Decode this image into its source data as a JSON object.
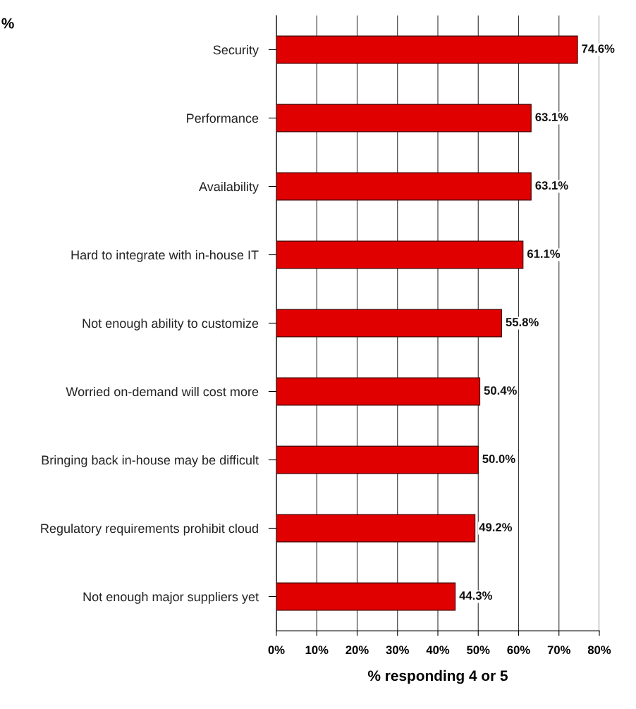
{
  "chart_data": {
    "type": "bar",
    "orientation": "horizontal",
    "xlabel": "% responding 4 or 5",
    "categories": [
      "Security",
      "Performance",
      "Availability",
      "Hard to integrate with in-house IT",
      "Not enough ability to customize",
      "Worried on-demand will cost more",
      "Bringing back in-house may be difficult",
      "Regulatory requirements prohibit cloud",
      "Not enough major suppliers yet"
    ],
    "values": [
      74.6,
      63.1,
      63.1,
      61.1,
      55.8,
      50.4,
      50.0,
      49.2,
      44.3
    ],
    "value_labels": [
      "74.6%",
      "63.1%",
      "63.1%",
      "61.1%",
      "55.8%",
      "50.4%",
      "50.0%",
      "49.2%",
      "44.3%"
    ],
    "color": "#e00000",
    "xlim": [
      0,
      80
    ],
    "xticks": [
      {
        "value": 0,
        "label": "0%"
      },
      {
        "value": 10,
        "label": "10%"
      },
      {
        "value": 20,
        "label": "20%"
      },
      {
        "value": 30,
        "label": "30%"
      },
      {
        "value": 40,
        "label": "40%"
      },
      {
        "value": 50,
        "label": "50%"
      },
      {
        "value": 60,
        "label": "60%"
      },
      {
        "value": 70,
        "label": "70%"
      },
      {
        "value": 80,
        "label": "80%"
      }
    ],
    "grid": "x",
    "annotations": [
      "%"
    ]
  }
}
